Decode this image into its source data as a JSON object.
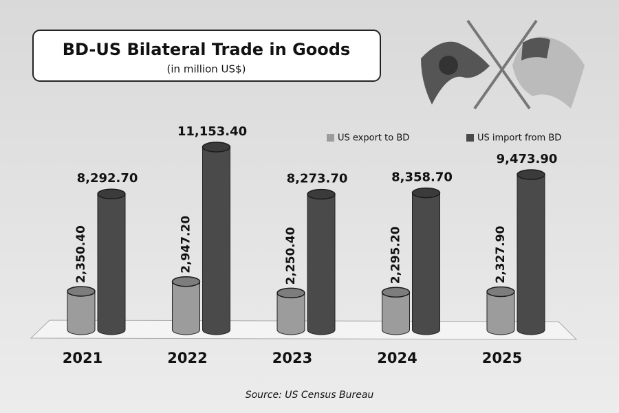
{
  "chart_data": {
    "type": "bar",
    "title": "BD-US Bilateral Trade in Goods",
    "subtitle": "(in million US$)",
    "categories": [
      "2021",
      "2022",
      "2023",
      "2024",
      "2025"
    ],
    "series": [
      {
        "name": "US export to BD",
        "color": "#9c9c9c",
        "values": [
          2350.4,
          2947.2,
          2250.4,
          2295.2,
          2327.9
        ],
        "value_labels": [
          "2,350.40",
          "2,947.20",
          "2,250.40",
          "2,295.20",
          "2,327.90"
        ]
      },
      {
        "name": "US import from BD",
        "color": "#4a4a4a",
        "values": [
          8292.7,
          11153.4,
          8273.7,
          8358.7,
          9473.9
        ],
        "value_labels": [
          "8,292.70",
          "11,153.40",
          "8,273.70",
          "8,358.70",
          "9,473.90"
        ]
      }
    ],
    "source": "Source: US Census Bureau"
  }
}
